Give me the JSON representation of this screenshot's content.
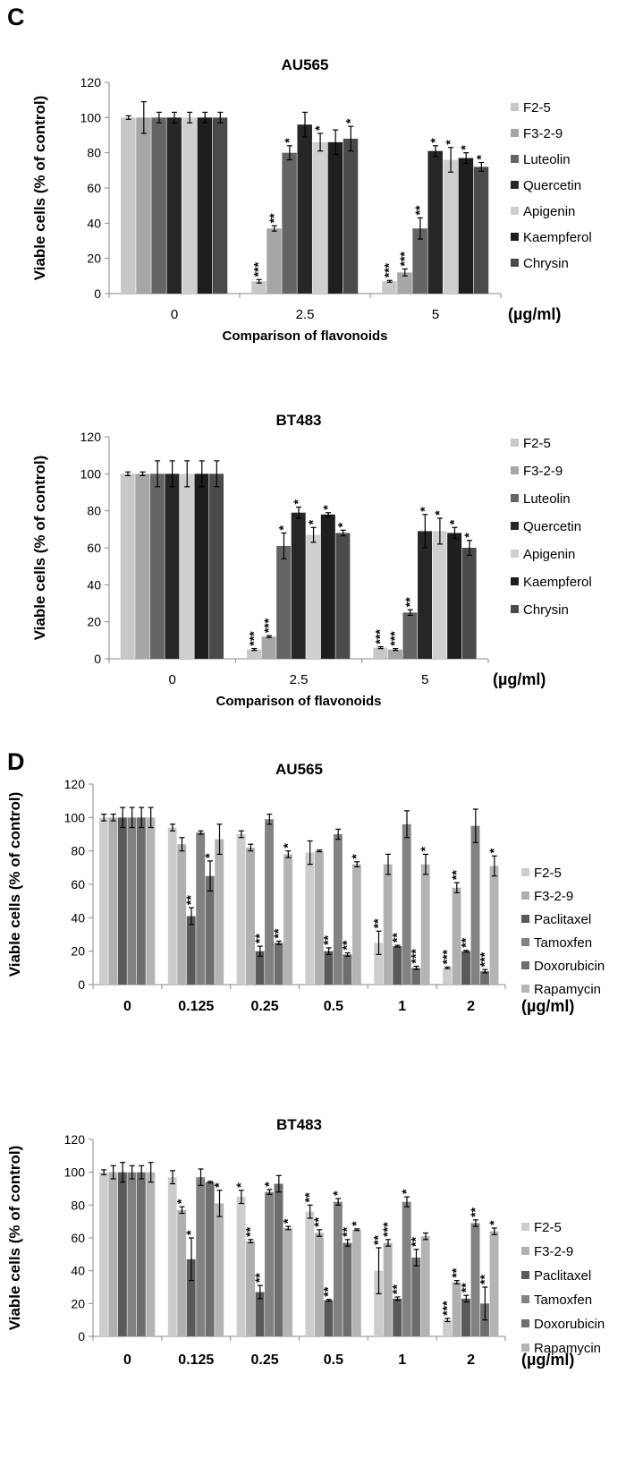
{
  "panels": {
    "c_label": "C",
    "d_label": "D"
  },
  "chart_data": [
    {
      "type": "bar",
      "title": "AU565",
      "ylabel": "Viable cells (% of control)",
      "xlabel": "Comparison of flavonoids",
      "unit": "(µg/ml)",
      "ylim": [
        0,
        120
      ],
      "yticks": [
        0,
        20,
        40,
        60,
        80,
        100,
        120
      ],
      "categories": [
        "0",
        "2.5",
        "5"
      ],
      "legend_position": "right",
      "series": [
        {
          "name": "F2-5",
          "color": "#c8c8c8",
          "values": [
            100,
            7,
            7
          ],
          "errors": [
            1,
            1,
            0.5
          ],
          "marks": [
            "",
            "***",
            "***"
          ]
        },
        {
          "name": "F3-2-9",
          "color": "#a6a6a6",
          "values": [
            100,
            37,
            12
          ],
          "errors": [
            9,
            1.5,
            2
          ],
          "marks": [
            "",
            "**",
            "***"
          ]
        },
        {
          "name": "Luteolin",
          "color": "#646464",
          "values": [
            100,
            80,
            37
          ],
          "errors": [
            3,
            4,
            6
          ],
          "marks": [
            "",
            "*",
            "**"
          ]
        },
        {
          "name": "Quercetin",
          "color": "#262626",
          "values": [
            100,
            96,
            81
          ],
          "errors": [
            3,
            7,
            3
          ],
          "marks": [
            "",
            "",
            "*"
          ]
        },
        {
          "name": "Apigenin",
          "color": "#cfcfcf",
          "values": [
            100,
            86,
            76
          ],
          "errors": [
            3,
            5,
            7
          ],
          "marks": [
            "",
            "*",
            "*"
          ]
        },
        {
          "name": "Kaempferol",
          "color": "#1e1e1e",
          "values": [
            100,
            86,
            77
          ],
          "errors": [
            3,
            7,
            3
          ],
          "marks": [
            "",
            "",
            "*"
          ]
        },
        {
          "name": "Chrysin",
          "color": "#4a4a4a",
          "values": [
            100,
            88,
            72
          ],
          "errors": [
            3,
            7,
            2.5
          ],
          "marks": [
            "",
            "*",
            "*"
          ]
        }
      ]
    },
    {
      "type": "bar",
      "title": "BT483",
      "ylabel": "Viable cells (% of control)",
      "xlabel": "Comparison of flavonoids",
      "unit": "(µg/ml)",
      "ylim": [
        0,
        120
      ],
      "yticks": [
        0,
        20,
        40,
        60,
        80,
        100,
        120
      ],
      "categories": [
        "0",
        "2.5",
        "5"
      ],
      "legend_position": "right",
      "series": [
        {
          "name": "F2-5",
          "color": "#c8c8c8",
          "values": [
            100,
            5,
            6
          ],
          "errors": [
            1,
            0.5,
            0.5
          ],
          "marks": [
            "",
            "***",
            "***"
          ]
        },
        {
          "name": "F3-2-9",
          "color": "#a6a6a6",
          "values": [
            100,
            12,
            5
          ],
          "errors": [
            1,
            0.5,
            0.5
          ],
          "marks": [
            "",
            "***",
            "***"
          ]
        },
        {
          "name": "Luteolin",
          "color": "#646464",
          "values": [
            100,
            61,
            25
          ],
          "errors": [
            7,
            7,
            1.5
          ],
          "marks": [
            "",
            "*",
            "**"
          ]
        },
        {
          "name": "Quercetin",
          "color": "#262626",
          "values": [
            100,
            79,
            69
          ],
          "errors": [
            7,
            3,
            9
          ],
          "marks": [
            "",
            "*",
            "*"
          ]
        },
        {
          "name": "Apigenin",
          "color": "#cfcfcf",
          "values": [
            100,
            67,
            69
          ],
          "errors": [
            7,
            4,
            7
          ],
          "marks": [
            "",
            "*",
            "*"
          ]
        },
        {
          "name": "Kaempferol",
          "color": "#1e1e1e",
          "values": [
            100,
            78,
            68
          ],
          "errors": [
            7,
            1,
            3
          ],
          "marks": [
            "",
            "*",
            "*"
          ]
        },
        {
          "name": "Chrysin",
          "color": "#4a4a4a",
          "values": [
            100,
            68,
            60
          ],
          "errors": [
            7,
            1.5,
            4
          ],
          "marks": [
            "",
            "*",
            "*"
          ]
        }
      ]
    },
    {
      "type": "bar",
      "title": "AU565",
      "ylabel": "Viable cells (% of control)",
      "xlabel": "",
      "unit": "(µg/ml)",
      "ylim": [
        0,
        120
      ],
      "yticks": [
        0,
        20,
        40,
        60,
        80,
        100,
        120
      ],
      "categories": [
        "0",
        "0.125",
        "0.25",
        "0.5",
        "1",
        "2"
      ],
      "legend_position": "right",
      "series": [
        {
          "name": "F2-5",
          "color": "#cdcdcd",
          "values": [
            100,
            94,
            90,
            79,
            25,
            10
          ],
          "errors": [
            2,
            2,
            2,
            7,
            7,
            0.5
          ],
          "marks": [
            "",
            "",
            "",
            "",
            "**",
            "***"
          ]
        },
        {
          "name": "F3-2-9",
          "color": "#b0b0b0",
          "values": [
            100,
            84,
            82,
            80,
            72,
            58
          ],
          "errors": [
            2,
            4,
            2,
            0.5,
            6,
            3
          ],
          "marks": [
            "",
            "",
            "",
            "",
            "",
            "**"
          ]
        },
        {
          "name": "Paclitaxel",
          "color": "#5a5a5a",
          "values": [
            100,
            41,
            20,
            20,
            23,
            20
          ],
          "errors": [
            6,
            5,
            3,
            2,
            0.5,
            0.5
          ],
          "marks": [
            "",
            "**",
            "**",
            "**",
            "**",
            "**"
          ]
        },
        {
          "name": "Tamoxfen",
          "color": "#828282",
          "values": [
            100,
            91,
            99,
            90,
            96,
            95
          ],
          "errors": [
            6,
            1,
            3,
            3,
            8,
            10
          ],
          "marks": [
            "",
            "",
            "",
            "",
            "",
            ""
          ]
        },
        {
          "name": "Doxorubicin",
          "color": "#6e6e6e",
          "values": [
            100,
            65,
            25,
            18,
            10,
            8
          ],
          "errors": [
            6,
            9,
            1,
            1,
            1,
            1
          ],
          "marks": [
            "",
            "*",
            "**",
            "**",
            "***",
            "***"
          ]
        },
        {
          "name": "Rapamycin",
          "color": "#b4b4b4",
          "values": [
            100,
            87,
            78,
            72,
            72,
            71
          ],
          "errors": [
            6,
            9,
            2,
            1.5,
            6,
            6
          ],
          "marks": [
            "",
            "",
            "*",
            "*",
            "*",
            "*"
          ]
        }
      ]
    },
    {
      "type": "bar",
      "title": "BT483",
      "ylabel": "Viable cells (% of control)",
      "xlabel": "",
      "unit": "(µg/ml)",
      "ylim": [
        0,
        120
      ],
      "yticks": [
        0,
        20,
        40,
        60,
        80,
        100,
        120
      ],
      "categories": [
        "0",
        "0.125",
        "0.25",
        "0.5",
        "1",
        "2"
      ],
      "legend_position": "right",
      "series": [
        {
          "name": "F2-5",
          "color": "#cdcdcd",
          "values": [
            100,
            97,
            85,
            76,
            40,
            10
          ],
          "errors": [
            1.5,
            4,
            4,
            4,
            14,
            1
          ],
          "marks": [
            "",
            "",
            "*",
            "**",
            "**",
            "***"
          ]
        },
        {
          "name": "F3-2-9",
          "color": "#b0b0b0",
          "values": [
            100,
            77,
            58,
            63,
            57,
            33
          ],
          "errors": [
            4,
            2,
            1,
            2,
            2,
            1
          ],
          "marks": [
            "",
            "*",
            "**",
            "**",
            "***",
            "**"
          ]
        },
        {
          "name": "Paclitaxel",
          "color": "#5a5a5a",
          "values": [
            100,
            47,
            27,
            22,
            23,
            23
          ],
          "errors": [
            6,
            13,
            4,
            0.5,
            1,
            2
          ],
          "marks": [
            "",
            "*",
            "**",
            "**",
            "**",
            "**"
          ]
        },
        {
          "name": "Tamoxfen",
          "color": "#828282",
          "values": [
            100,
            97,
            88,
            82,
            82,
            69
          ],
          "errors": [
            4,
            5,
            1.5,
            2,
            3,
            2
          ],
          "marks": [
            "",
            "",
            "*",
            "*",
            "*",
            "**"
          ]
        },
        {
          "name": "Doxorubicin",
          "color": "#6e6e6e",
          "values": [
            100,
            94,
            93,
            57,
            48,
            20
          ],
          "errors": [
            4,
            0.5,
            5,
            2,
            5,
            10
          ],
          "marks": [
            "",
            "",
            "",
            "**",
            "**",
            "**"
          ]
        },
        {
          "name": "Rapamycin",
          "color": "#b4b4b4",
          "values": [
            100,
            81,
            66,
            65,
            61,
            64
          ],
          "errors": [
            6,
            8,
            1,
            0.5,
            2,
            2
          ],
          "marks": [
            "",
            "*",
            "*",
            "*",
            "",
            "*"
          ]
        }
      ]
    }
  ]
}
